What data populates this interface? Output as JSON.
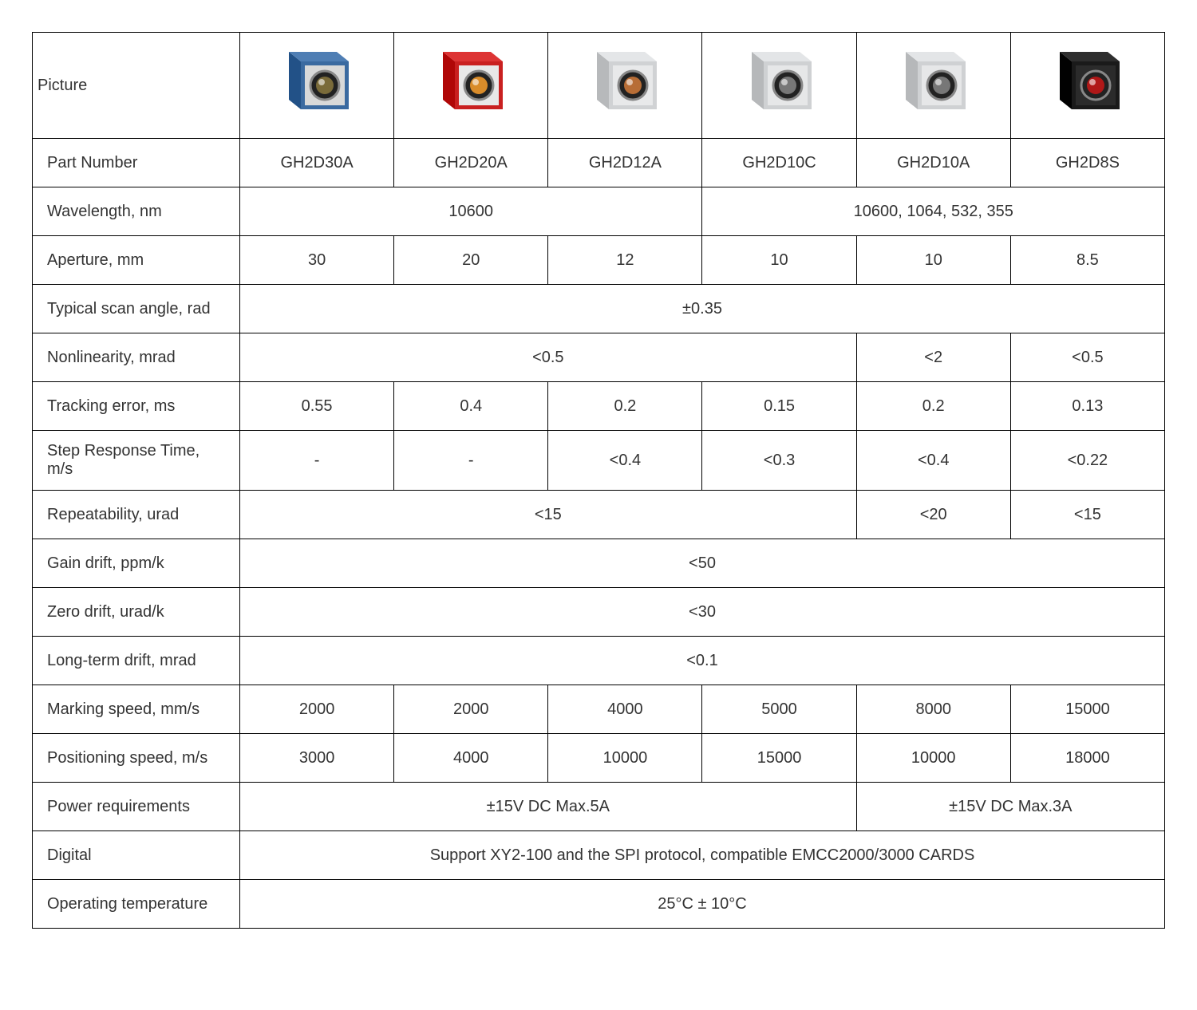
{
  "labels": {
    "picture": "Picture",
    "partNumber": "Part Number",
    "wavelength": "Wavelength, nm",
    "aperture": "Aperture, mm",
    "scanAngle": "Typical scan angle, rad",
    "nonlinearity": "Nonlinearity, mrad",
    "trackingError": "Tracking error, ms",
    "stepResponse": "Step Response Time, m/s",
    "repeatability": "Repeatability, urad",
    "gainDrift": "Gain drift, ppm/k",
    "zeroDrift": "Zero drift, urad/k",
    "longTermDrift": "Long-term drift, mrad",
    "markingSpeed": "Marking speed, mm/s",
    "positioningSpeed": "Positioning speed, m/s",
    "powerReq": "Power requirements",
    "digital": "Digital",
    "opTemp": "Operating temperature"
  },
  "partNumbers": [
    "GH2D30A",
    "GH2D20A",
    "GH2D12A",
    "GH2D10C",
    "GH2D10A",
    "GH2D8S"
  ],
  "wavelength": {
    "group1": "10600",
    "group2": "10600, 1064, 532, 355"
  },
  "aperture": [
    "30",
    "20",
    "12",
    "10",
    "10",
    "8.5"
  ],
  "scanAngle": "±0.35",
  "nonlinearity": {
    "group1": "<0.5",
    "col5": "<2",
    "col6": "<0.5"
  },
  "trackingError": [
    "0.55",
    "0.4",
    "0.2",
    "0.15",
    "0.2",
    "0.13"
  ],
  "stepResponse": [
    "-",
    "-",
    "<0.4",
    "<0.3",
    "<0.4",
    "<0.22"
  ],
  "repeatability": {
    "group1": "<15",
    "col5": "<20",
    "col6": "<15"
  },
  "gainDrift": "<50",
  "zeroDrift": "<30",
  "longTermDrift": "<0.1",
  "markingSpeed": [
    "2000",
    "2000",
    "4000",
    "5000",
    "8000",
    "15000"
  ],
  "positioningSpeed": [
    "3000",
    "4000",
    "10000",
    "15000",
    "10000",
    "18000"
  ],
  "powerReq": {
    "group1": "±15V DC Max.5A",
    "group2": "±15V DC Max.3A"
  },
  "digital": "Support XY2-100 and the SPI protocol, compatible EMCC2000/3000 CARDS",
  "opTemp": "25°C ± 10°C",
  "pictures": [
    {
      "body": "#3b6aa0",
      "front": "#d9d9d9",
      "lens": "#7a6b3a"
    },
    {
      "body": "#c92020",
      "front": "#e8e8e8",
      "lens": "#d98c2a"
    },
    {
      "body": "#d0d2d4",
      "front": "#e8e9ea",
      "lens": "#b76d36"
    },
    {
      "body": "#cfd1d3",
      "front": "#e6e7e8",
      "lens": "#777777"
    },
    {
      "body": "#cfd1d3",
      "front": "#e6e7e8",
      "lens": "#777777"
    },
    {
      "body": "#1a1a1a",
      "front": "#2b2b2b",
      "lens": "#b01818"
    }
  ],
  "style": {
    "tableBorderColor": "#000000",
    "textColor": "#333333",
    "fontSize": 20,
    "backgroundColor": "#ffffff"
  }
}
